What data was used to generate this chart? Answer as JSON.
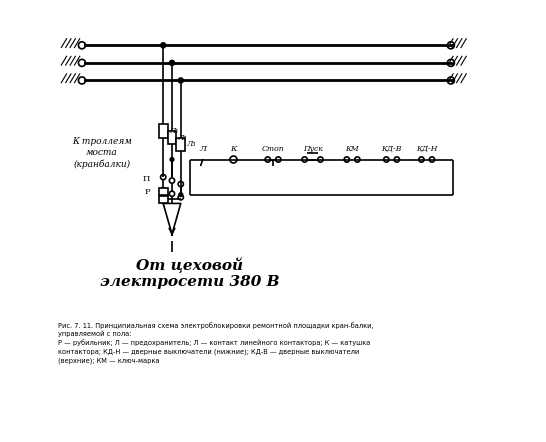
{
  "bg_color": "#ffffff",
  "line_color": "#000000",
  "fig_width": 5.46,
  "fig_height": 4.42,
  "dpi": 100,
  "caption_line1": "Рис. 7. 11. Принципиальная схема электроблокировки ремонтной площадки кран-балки,",
  "caption_line2": "управляемой с пола:",
  "caption_line3": "Р — рубильник; Л — предохранитель; Л — контакт линейного контактора; К — катушка",
  "caption_line4": "контактора; КД-Н — дверные выключатели (нижние); КД-В — дверные выключатели",
  "caption_line5": "(верхние); КМ — ключ-марка",
  "from_network_line1": "От цеховой",
  "from_network_line2": "электросети 380 В",
  "to_trolley_line1": "К троллеям",
  "to_trolley_line2": "моста",
  "to_trolley_line3": "(кранбалки)"
}
